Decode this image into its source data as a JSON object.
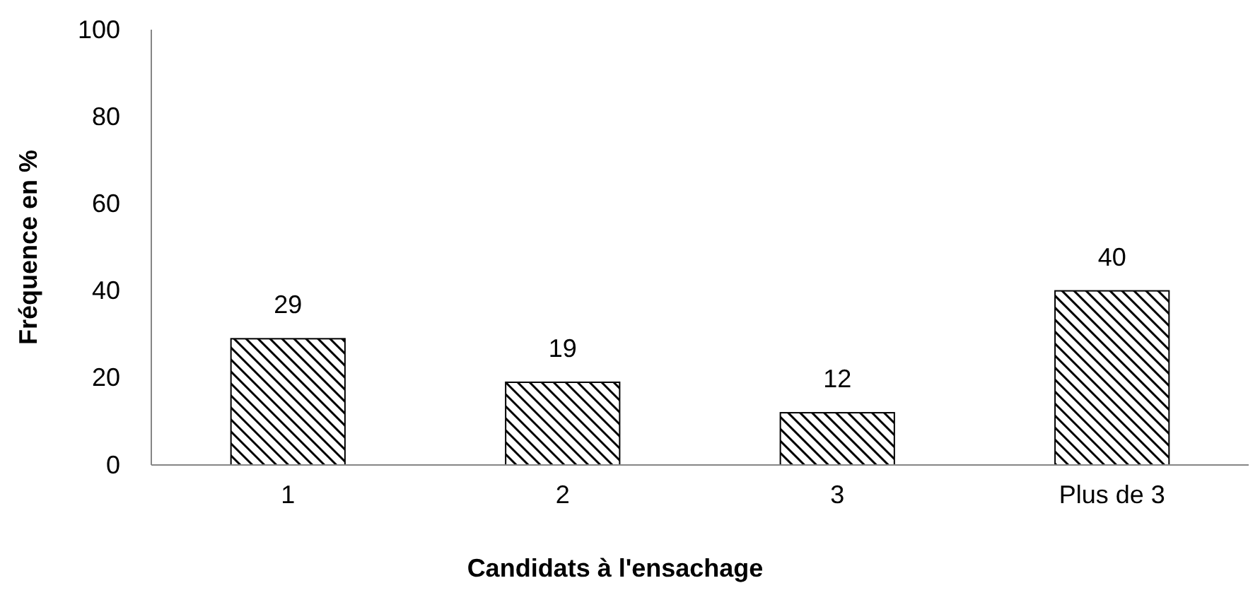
{
  "chart_data": {
    "type": "bar",
    "xlabel": "Candidats à l'ensachage",
    "ylabel": "Fréquence en %",
    "categories": [
      "1",
      "2",
      "3",
      "Plus de 3"
    ],
    "values": [
      29,
      19,
      12,
      40
    ],
    "color": "#000000",
    "ylim": [
      0,
      100
    ],
    "yticks": [
      0,
      20,
      40,
      60,
      80,
      100
    ],
    "data_labels": true,
    "grid": false
  }
}
